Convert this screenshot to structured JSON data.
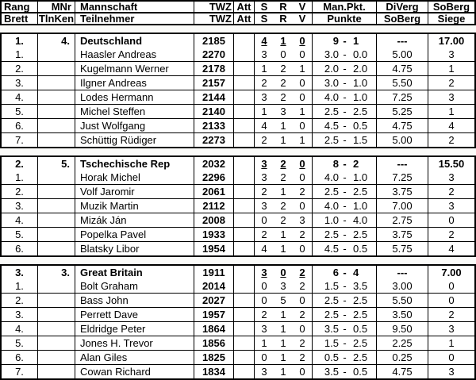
{
  "labels": {
    "pkt_separator": "-"
  },
  "header": {
    "row1": {
      "rang": "Rang",
      "mnr": "MNr",
      "mannschaft": "Mannschaft",
      "twz": "TWZ",
      "att": "Att",
      "s": "S",
      "r": "R",
      "v": "V",
      "manpkt": "Man.Pkt.",
      "diverg": "DiVerg",
      "soberg": "SoBerg"
    },
    "row2": {
      "brett": "Brett",
      "tlnken": "TlnKen",
      "teilnehmer": "Teilnehmer",
      "twz": "TWZ",
      "att": "Att",
      "s": "S",
      "r": "R",
      "v": "V",
      "punkte": "Punkte",
      "soberg": "SoBerg",
      "siege": "Siege"
    }
  },
  "blocks": [
    {
      "team": {
        "rang": "1.",
        "mnr": "4.",
        "name": "Deutschland",
        "twz": "2185",
        "att": "",
        "s": "4",
        "r": "1",
        "v": "0",
        "pkt_left": "9",
        "pkt_right": "1",
        "diverg": "---",
        "soberg": "17.00"
      },
      "players": [
        {
          "brett": "1.",
          "tlnken": "",
          "name": "Haasler Andreas",
          "twz": "2270",
          "att": "",
          "s": "3",
          "r": "0",
          "v": "0",
          "pkt_left": "3.0",
          "pkt_right": "0.0",
          "soberg": "5.00",
          "siege": "3"
        },
        {
          "brett": "2.",
          "tlnken": "",
          "name": "Kugelmann Werner",
          "twz": "2178",
          "att": "",
          "s": "1",
          "r": "2",
          "v": "1",
          "pkt_left": "2.0",
          "pkt_right": "2.0",
          "soberg": "4.75",
          "siege": "1"
        },
        {
          "brett": "3.",
          "tlnken": "",
          "name": "Ilgner Andreas",
          "twz": "2157",
          "att": "",
          "s": "2",
          "r": "2",
          "v": "0",
          "pkt_left": "3.0",
          "pkt_right": "1.0",
          "soberg": "5.50",
          "siege": "2"
        },
        {
          "brett": "4.",
          "tlnken": "",
          "name": "Lodes Hermann",
          "twz": "2144",
          "att": "",
          "s": "3",
          "r": "2",
          "v": "0",
          "pkt_left": "4.0",
          "pkt_right": "1.0",
          "soberg": "7.25",
          "siege": "3"
        },
        {
          "brett": "5.",
          "tlnken": "",
          "name": "Michel Steffen",
          "twz": "2140",
          "att": "",
          "s": "1",
          "r": "3",
          "v": "1",
          "pkt_left": "2.5",
          "pkt_right": "2.5",
          "soberg": "5.25",
          "siege": "1"
        },
        {
          "brett": "6.",
          "tlnken": "",
          "name": "Just Wolfgang",
          "twz": "2133",
          "att": "",
          "s": "4",
          "r": "1",
          "v": "0",
          "pkt_left": "4.5",
          "pkt_right": "0.5",
          "soberg": "4.75",
          "siege": "4"
        },
        {
          "brett": "7.",
          "tlnken": "",
          "name": "Schüttig Rüdiger",
          "twz": "2273",
          "att": "",
          "s": "2",
          "r": "1",
          "v": "1",
          "pkt_left": "2.5",
          "pkt_right": "1.5",
          "soberg": "5.00",
          "siege": "2"
        }
      ]
    },
    {
      "team": {
        "rang": "2.",
        "mnr": "5.",
        "name": "Tschechische Rep",
        "twz": "2032",
        "att": "",
        "s": "3",
        "r": "2",
        "v": "0",
        "pkt_left": "8",
        "pkt_right": "2",
        "diverg": "---",
        "soberg": "15.50"
      },
      "players": [
        {
          "brett": "1.",
          "tlnken": "",
          "name": "Horak Michel",
          "twz": "2296",
          "att": "",
          "s": "3",
          "r": "2",
          "v": "0",
          "pkt_left": "4.0",
          "pkt_right": "1.0",
          "soberg": "7.25",
          "siege": "3"
        },
        {
          "brett": "2.",
          "tlnken": "",
          "name": "Volf Jaromir",
          "twz": "2061",
          "att": "",
          "s": "2",
          "r": "1",
          "v": "2",
          "pkt_left": "2.5",
          "pkt_right": "2.5",
          "soberg": "3.75",
          "siege": "2"
        },
        {
          "brett": "3.",
          "tlnken": "",
          "name": "Muzik Martin",
          "twz": "2112",
          "att": "",
          "s": "3",
          "r": "2",
          "v": "0",
          "pkt_left": "4.0",
          "pkt_right": "1.0",
          "soberg": "7.00",
          "siege": "3"
        },
        {
          "brett": "4.",
          "tlnken": "",
          "name": "Mizák Ján",
          "twz": "2008",
          "att": "",
          "s": "0",
          "r": "2",
          "v": "3",
          "pkt_left": "1.0",
          "pkt_right": "4.0",
          "soberg": "2.75",
          "siege": "0"
        },
        {
          "brett": "5.",
          "tlnken": "",
          "name": "Popelka Pavel",
          "twz": "1933",
          "att": "",
          "s": "2",
          "r": "1",
          "v": "2",
          "pkt_left": "2.5",
          "pkt_right": "2.5",
          "soberg": "3.75",
          "siege": "2"
        },
        {
          "brett": "6.",
          "tlnken": "",
          "name": "Blatsky Libor",
          "twz": "1954",
          "att": "",
          "s": "4",
          "r": "1",
          "v": "0",
          "pkt_left": "4.5",
          "pkt_right": "0.5",
          "soberg": "5.75",
          "siege": "4"
        }
      ]
    },
    {
      "team": {
        "rang": "3.",
        "mnr": "3.",
        "name": "Great Britain",
        "twz": "1911",
        "att": "",
        "s": "3",
        "r": "0",
        "v": "2",
        "pkt_left": "6",
        "pkt_right": "4",
        "diverg": "---",
        "soberg": "7.00"
      },
      "players": [
        {
          "brett": "1.",
          "tlnken": "",
          "name": "Bolt Graham",
          "twz": "2014",
          "att": "",
          "s": "0",
          "r": "3",
          "v": "2",
          "pkt_left": "1.5",
          "pkt_right": "3.5",
          "soberg": "3.00",
          "siege": "0"
        },
        {
          "brett": "2.",
          "tlnken": "",
          "name": "Bass John",
          "twz": "2027",
          "att": "",
          "s": "0",
          "r": "5",
          "v": "0",
          "pkt_left": "2.5",
          "pkt_right": "2.5",
          "soberg": "5.50",
          "siege": "0"
        },
        {
          "brett": "3.",
          "tlnken": "",
          "name": "Perrett Dave",
          "twz": "1957",
          "att": "",
          "s": "2",
          "r": "1",
          "v": "2",
          "pkt_left": "2.5",
          "pkt_right": "2.5",
          "soberg": "3.50",
          "siege": "2"
        },
        {
          "brett": "4.",
          "tlnken": "",
          "name": "Eldridge Peter",
          "twz": "1864",
          "att": "",
          "s": "3",
          "r": "1",
          "v": "0",
          "pkt_left": "3.5",
          "pkt_right": "0.5",
          "soberg": "9.50",
          "siege": "3"
        },
        {
          "brett": "5.",
          "tlnken": "",
          "name": "Jones H. Trevor",
          "twz": "1856",
          "att": "",
          "s": "1",
          "r": "1",
          "v": "2",
          "pkt_left": "1.5",
          "pkt_right": "2.5",
          "soberg": "2.25",
          "siege": "1"
        },
        {
          "brett": "6.",
          "tlnken": "",
          "name": "Alan Giles",
          "twz": "1825",
          "att": "",
          "s": "0",
          "r": "1",
          "v": "2",
          "pkt_left": "0.5",
          "pkt_right": "2.5",
          "soberg": "0.25",
          "siege": "0"
        },
        {
          "brett": "7.",
          "tlnken": "",
          "name": "Cowan Richard",
          "twz": "1834",
          "att": "",
          "s": "3",
          "r": "1",
          "v": "0",
          "pkt_left": "3.5",
          "pkt_right": "0.5",
          "soberg": "4.75",
          "siege": "3"
        }
      ]
    }
  ]
}
